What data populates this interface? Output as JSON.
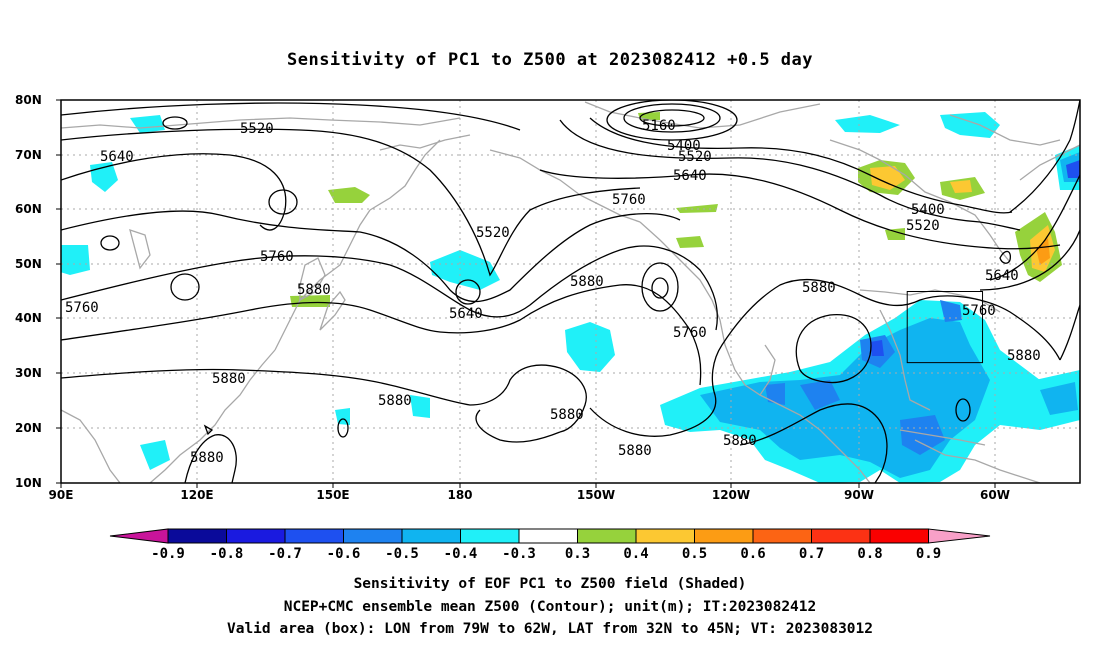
{
  "title": "Sensitivity of PC1 to Z500 at 2023082412 +0.5 day",
  "map": {
    "lat_labels": [
      "80N",
      "70N",
      "60N",
      "50N",
      "40N",
      "30N",
      "20N",
      "10N"
    ],
    "lon_labels": [
      "90E",
      "120E",
      "150E",
      "180",
      "150W",
      "120W",
      "90W",
      "60W"
    ],
    "contour_labels": [
      {
        "text": "5160"
      },
      {
        "text": "5400"
      },
      {
        "text": "5520"
      },
      {
        "text": "5640"
      },
      {
        "text": "5520"
      },
      {
        "text": "5640"
      },
      {
        "text": "5760"
      },
      {
        "text": "5520"
      },
      {
        "text": "5400"
      },
      {
        "text": "5520"
      },
      {
        "text": "5640"
      },
      {
        "text": "5760"
      },
      {
        "text": "5760"
      },
      {
        "text": "5880"
      },
      {
        "text": "5640"
      },
      {
        "text": "5880"
      },
      {
        "text": "5760"
      },
      {
        "text": "5880"
      },
      {
        "text": "5760"
      },
      {
        "text": "5880"
      },
      {
        "text": "5880"
      },
      {
        "text": "5880"
      },
      {
        "text": "5880"
      },
      {
        "text": "5880"
      },
      {
        "text": "5880"
      },
      {
        "text": "5880"
      }
    ],
    "valid_box": {
      "lon_w": -79,
      "lon_e": -62,
      "lat_s": 32,
      "lat_n": 45
    }
  },
  "colorbar": {
    "labels": [
      "-0.9",
      "-0.8",
      "-0.7",
      "-0.6",
      "-0.5",
      "-0.4",
      "-0.3",
      "0.3",
      "0.4",
      "0.5",
      "0.6",
      "0.7",
      "0.8",
      "0.9"
    ],
    "colors": [
      "#0a0a9a",
      "#1a1ae0",
      "#1e50f0",
      "#1e82f0",
      "#10b4f0",
      "#20f0f8",
      "#ffffff",
      "#96d23c",
      "#fcc832",
      "#fc9c14",
      "#fc6414",
      "#fc3214",
      "#fa0000"
    ],
    "left_arrow_color": "#c8149a",
    "right_arrow_color": "#f8a0c8"
  },
  "captions": {
    "line1": "Sensitivity of EOF PC1 to Z500 field (Shaded)",
    "line2": "NCEP+CMC ensemble mean Z500 (Contour); unit(m); IT:2023082412",
    "line3": "Valid area (box): LON from 79W to 62W, LAT from 32N to 45N; VT: 2023083012"
  }
}
